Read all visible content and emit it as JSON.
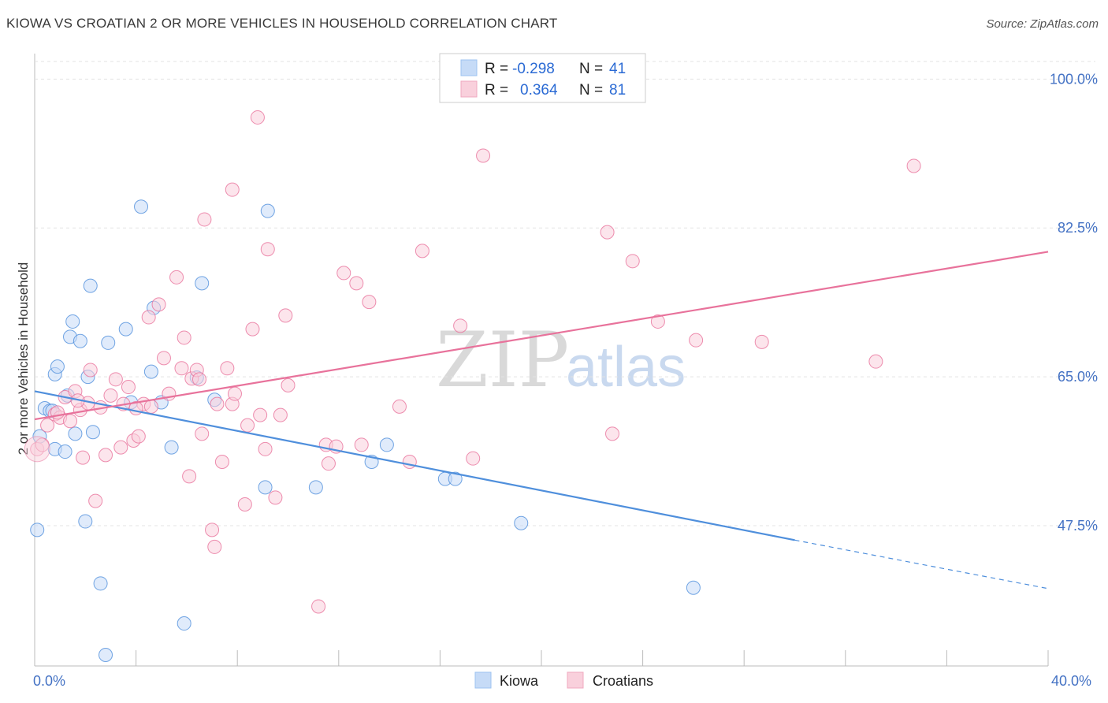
{
  "title": "KIOWA VS CROATIAN 2 OR MORE VEHICLES IN HOUSEHOLD CORRELATION CHART",
  "source": "Source: ZipAtlas.com",
  "watermark": {
    "zip": "ZIP",
    "atlas": "atlas"
  },
  "legend": {
    "r_label": "R =",
    "n_label": "N =",
    "rows": [
      {
        "r": "-0.298",
        "n": "41",
        "color": "#9dc3f0",
        "fill": "#c6dbf7"
      },
      {
        "r": "0.364",
        "n": "81",
        "color": "#f0a8bf",
        "fill": "#f9d0dc"
      }
    ]
  },
  "bottom_legend": [
    {
      "label": "Kiowa",
      "color": "#9dc3f0",
      "fill": "#c6dbf7"
    },
    {
      "label": "Croatians",
      "color": "#f0a8bf",
      "fill": "#f9d0dc"
    }
  ],
  "chart_data": {
    "type": "scatter",
    "title": "KIOWA VS CROATIAN 2 OR MORE VEHICLES IN HOUSEHOLD CORRELATION CHART",
    "xlabel": "",
    "ylabel": "2 or more Vehicles in Household",
    "xlim": [
      0,
      40
    ],
    "ylim": [
      31,
      103
    ],
    "x_tick_labels": [
      "0.0%",
      "40.0%"
    ],
    "y_ticks": [
      47.5,
      65.0,
      82.5,
      100.0
    ],
    "y_tick_labels": [
      "47.5%",
      "65.0%",
      "82.5%",
      "100.0%"
    ],
    "grid": "horizontal dashed",
    "series": [
      {
        "name": "Kiowa",
        "color": "#4f8fdc",
        "fill": "#c6dbf7",
        "points": [
          [
            0.1,
            47.0
          ],
          [
            0.2,
            58.0
          ],
          [
            0.4,
            61.3
          ],
          [
            0.6,
            61.0
          ],
          [
            0.8,
            65.3
          ],
          [
            0.8,
            56.5
          ],
          [
            0.9,
            66.2
          ],
          [
            1.2,
            56.2
          ],
          [
            1.3,
            62.8
          ],
          [
            1.4,
            69.7
          ],
          [
            1.5,
            71.5
          ],
          [
            1.6,
            58.3
          ],
          [
            1.8,
            69.2
          ],
          [
            2.0,
            48.0
          ],
          [
            2.1,
            65.0
          ],
          [
            2.2,
            75.7
          ],
          [
            2.3,
            58.5
          ],
          [
            2.6,
            40.7
          ],
          [
            2.8,
            32.3
          ],
          [
            2.9,
            69.0
          ],
          [
            3.6,
            70.6
          ],
          [
            3.8,
            62.0
          ],
          [
            4.2,
            85.0
          ],
          [
            4.6,
            65.6
          ],
          [
            4.7,
            73.1
          ],
          [
            5.0,
            62.0
          ],
          [
            5.4,
            56.7
          ],
          [
            5.9,
            36.0
          ],
          [
            6.4,
            64.9
          ],
          [
            6.6,
            76.0
          ],
          [
            7.1,
            62.3
          ],
          [
            9.1,
            52.0
          ],
          [
            9.2,
            84.5
          ],
          [
            11.1,
            52.0
          ],
          [
            13.3,
            55.0
          ],
          [
            13.9,
            57.0
          ],
          [
            16.2,
            53.0
          ],
          [
            16.6,
            53.0
          ],
          [
            19.2,
            47.8
          ],
          [
            26.0,
            40.2
          ],
          [
            0.7,
            61.0
          ]
        ],
        "trend": {
          "x0": 0.0,
          "y0": 63.3,
          "x1": 30.0,
          "y1": 45.8,
          "dash_to_x": 40.0,
          "dash_to_y": 40.1
        }
      },
      {
        "name": "Croatians",
        "color": "#e8729b",
        "fill": "#f9d0dc",
        "points": [
          [
            0.1,
            56.5
          ],
          [
            0.3,
            57.0
          ],
          [
            0.5,
            59.3
          ],
          [
            0.8,
            60.6
          ],
          [
            1.0,
            60.2
          ],
          [
            1.2,
            62.6
          ],
          [
            1.4,
            59.8
          ],
          [
            1.6,
            63.3
          ],
          [
            1.8,
            61.1
          ],
          [
            1.9,
            55.5
          ],
          [
            2.1,
            61.9
          ],
          [
            2.2,
            65.8
          ],
          [
            2.4,
            50.4
          ],
          [
            2.6,
            61.4
          ],
          [
            2.8,
            55.8
          ],
          [
            3.0,
            62.8
          ],
          [
            3.2,
            64.7
          ],
          [
            3.4,
            56.7
          ],
          [
            3.5,
            61.8
          ],
          [
            3.7,
            63.8
          ],
          [
            3.9,
            57.5
          ],
          [
            4.1,
            58.0
          ],
          [
            4.3,
            61.8
          ],
          [
            4.5,
            72.0
          ],
          [
            4.6,
            61.5
          ],
          [
            4.9,
            73.5
          ],
          [
            5.1,
            67.2
          ],
          [
            5.3,
            63.0
          ],
          [
            5.6,
            76.7
          ],
          [
            5.8,
            66.0
          ],
          [
            5.9,
            69.6
          ],
          [
            6.1,
            53.3
          ],
          [
            6.2,
            64.8
          ],
          [
            6.4,
            65.8
          ],
          [
            6.6,
            58.3
          ],
          [
            6.7,
            83.5
          ],
          [
            7.0,
            47.0
          ],
          [
            7.1,
            45.0
          ],
          [
            7.2,
            61.8
          ],
          [
            7.4,
            55.0
          ],
          [
            7.6,
            66.0
          ],
          [
            7.8,
            61.8
          ],
          [
            7.9,
            63.0
          ],
          [
            7.8,
            87.0
          ],
          [
            8.3,
            50.0
          ],
          [
            8.4,
            59.3
          ],
          [
            8.6,
            70.6
          ],
          [
            8.8,
            95.5
          ],
          [
            8.9,
            60.5
          ],
          [
            9.1,
            56.5
          ],
          [
            9.2,
            80.0
          ],
          [
            9.5,
            50.8
          ],
          [
            9.7,
            60.5
          ],
          [
            9.9,
            72.2
          ],
          [
            10.0,
            64.0
          ],
          [
            11.2,
            38.0
          ],
          [
            11.5,
            57.0
          ],
          [
            11.6,
            54.8
          ],
          [
            11.9,
            56.8
          ],
          [
            12.2,
            77.2
          ],
          [
            12.7,
            76.0
          ],
          [
            12.9,
            57.0
          ],
          [
            13.2,
            73.8
          ],
          [
            14.4,
            61.5
          ],
          [
            14.8,
            55.0
          ],
          [
            15.3,
            79.8
          ],
          [
            16.8,
            71.0
          ],
          [
            17.3,
            55.4
          ],
          [
            17.7,
            91.0
          ],
          [
            22.6,
            82.0
          ],
          [
            22.8,
            58.3
          ],
          [
            23.6,
            78.6
          ],
          [
            24.6,
            71.5
          ],
          [
            26.1,
            69.3
          ],
          [
            28.7,
            69.1
          ],
          [
            33.2,
            66.8
          ],
          [
            34.7,
            89.8
          ],
          [
            1.7,
            62.2
          ],
          [
            0.9,
            60.8
          ],
          [
            4.0,
            61.3
          ],
          [
            6.5,
            64.7
          ]
        ],
        "trend": {
          "x0": 0.0,
          "y0": 60.0,
          "x1": 40.0,
          "y1": 79.7
        }
      }
    ]
  }
}
